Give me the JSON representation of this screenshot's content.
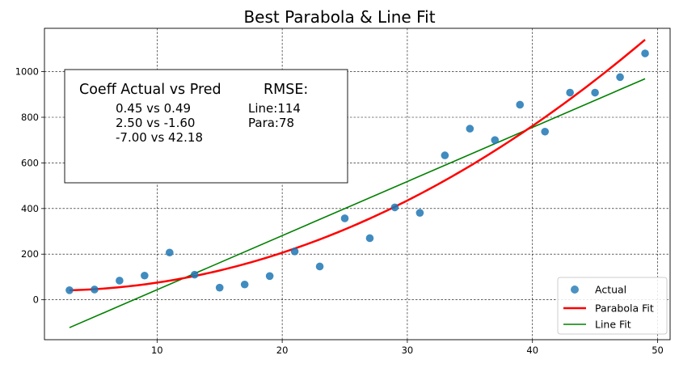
{
  "chart_data": {
    "type": "scatter",
    "title": "Best Parabola & Line Fit",
    "xlabel": "",
    "ylabel": "",
    "xlim": [
      1.0,
      51.0
    ],
    "ylim": [
      -175,
      1190
    ],
    "xticks": [
      10,
      20,
      30,
      40,
      50
    ],
    "yticks": [
      0,
      200,
      400,
      600,
      800,
      1000
    ],
    "grid": true,
    "legend_position": "lower-right",
    "series": [
      {
        "name": "Actual",
        "kind": "scatter",
        "color": "#1f77b4",
        "x": [
          3,
          5,
          7,
          9,
          11,
          13,
          15,
          17,
          19,
          21,
          23,
          25,
          27,
          29,
          31,
          33,
          35,
          37,
          39,
          41,
          43,
          45,
          47,
          49
        ],
        "y": [
          42,
          45,
          84,
          106,
          207,
          110,
          53,
          67,
          104,
          212,
          146,
          357,
          270,
          405,
          381,
          633,
          750,
          700,
          855,
          737,
          908,
          908,
          976,
          1080
        ]
      },
      {
        "name": "Parabola Fit",
        "kind": "line",
        "color": "#ff0000",
        "coefficients": {
          "a": 0.49,
          "b": -1.6,
          "c": 42.18
        },
        "x_range": [
          3,
          49
        ]
      },
      {
        "name": "Line Fit",
        "kind": "line",
        "color": "#008000",
        "points": {
          "x": [
            3,
            49
          ],
          "y": [
            -122,
            969
          ]
        }
      }
    ],
    "annotation": {
      "header_left": "Coeff Actual vs Pred",
      "header_right": "RMSE:",
      "coeff_lines": [
        "0.45 vs 0.49",
        "2.50 vs -1.60",
        "-7.00 vs 42.18"
      ],
      "rmse_lines": [
        "Line:114",
        "Para:78"
      ]
    }
  }
}
